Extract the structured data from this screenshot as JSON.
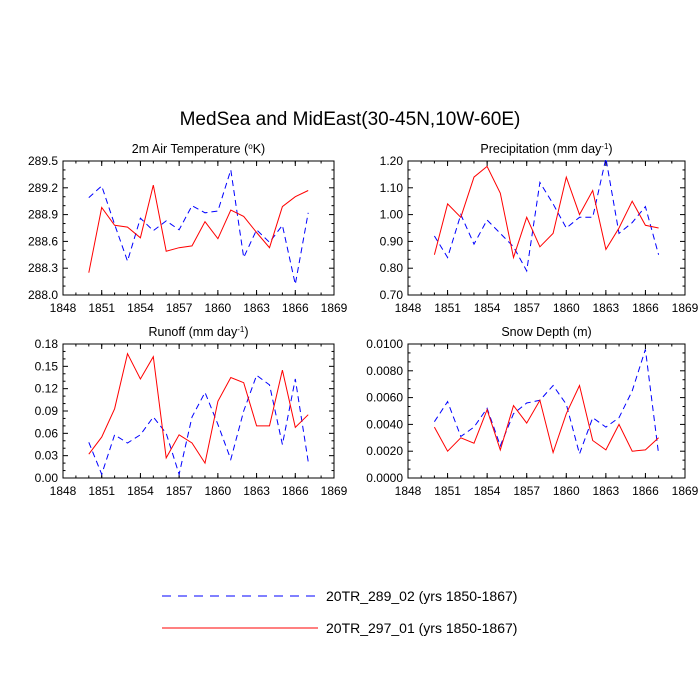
{
  "title": "MedSea and MidEast(30-45N,10W-60E)",
  "legend": [
    {
      "label": "20TR_289_02 (yrs 1850-1867)",
      "color": "#0000ff",
      "style": "dashed"
    },
    {
      "label": "20TR_297_01 (yrs 1850-1867)",
      "color": "#ff0000",
      "style": "solid"
    }
  ],
  "chart_data": [
    {
      "type": "line",
      "title_main": "2m Air Temperature (",
      "title_sup": "o",
      "title_tail": "K)",
      "x": [
        1850,
        1851,
        1852,
        1853,
        1854,
        1855,
        1856,
        1857,
        1858,
        1859,
        1860,
        1861,
        1862,
        1863,
        1864,
        1865,
        1866,
        1867
      ],
      "xlim": [
        1848,
        1869
      ],
      "xticks": [
        "1848",
        "1851",
        "1854",
        "1857",
        "1860",
        "1863",
        "1866",
        "1869"
      ],
      "ylim": [
        288.0,
        289.5
      ],
      "yticks": [
        "288.0",
        "288.3",
        "288.6",
        "288.9",
        "289.2",
        "289.5"
      ],
      "series": [
        {
          "name": "20TR_289_02",
          "color": "#0000ff",
          "style": "dashed",
          "values": [
            289.09,
            289.22,
            288.79,
            288.38,
            288.86,
            288.72,
            288.83,
            288.73,
            289.0,
            288.92,
            288.94,
            289.4,
            288.42,
            288.73,
            288.59,
            288.78,
            288.12,
            288.92
          ]
        },
        {
          "name": "20TR_297_01",
          "color": "#ff0000",
          "style": "solid",
          "values": [
            288.25,
            288.98,
            288.78,
            288.76,
            288.64,
            289.23,
            288.49,
            288.53,
            288.55,
            288.82,
            288.63,
            288.95,
            288.88,
            288.7,
            288.53,
            288.99,
            289.1,
            289.17
          ]
        }
      ]
    },
    {
      "type": "line",
      "title_main": "Precipitation (mm day",
      "title_sup": "-1",
      "title_tail": ")",
      "x": [
        1850,
        1851,
        1852,
        1853,
        1854,
        1855,
        1856,
        1857,
        1858,
        1859,
        1860,
        1861,
        1862,
        1863,
        1864,
        1865,
        1866,
        1867
      ],
      "xlim": [
        1848,
        1869
      ],
      "xticks": [
        "1848",
        "1851",
        "1854",
        "1857",
        "1860",
        "1863",
        "1866",
        "1869"
      ],
      "ylim": [
        0.7,
        1.2
      ],
      "yticks": [
        "0.70",
        "0.80",
        "0.90",
        "1.00",
        "1.10",
        "1.20"
      ],
      "series": [
        {
          "name": "20TR_289_02",
          "color": "#0000ff",
          "style": "dashed",
          "values": [
            0.92,
            0.84,
            1.0,
            0.89,
            0.98,
            0.93,
            0.88,
            0.79,
            1.12,
            1.04,
            0.95,
            0.99,
            0.99,
            1.21,
            0.93,
            0.97,
            1.03,
            0.85
          ]
        },
        {
          "name": "20TR_297_01",
          "color": "#ff0000",
          "style": "solid",
          "values": [
            0.85,
            1.04,
            0.99,
            1.14,
            1.18,
            1.08,
            0.84,
            0.99,
            0.88,
            0.93,
            1.14,
            1.0,
            1.09,
            0.87,
            0.95,
            1.05,
            0.96,
            0.95
          ]
        }
      ]
    },
    {
      "type": "line",
      "title_main": "Runoff (mm day",
      "title_sup": "-1",
      "title_tail": ")",
      "x": [
        1850,
        1851,
        1852,
        1853,
        1854,
        1855,
        1856,
        1857,
        1858,
        1859,
        1860,
        1861,
        1862,
        1863,
        1864,
        1865,
        1866,
        1867
      ],
      "xlim": [
        1848,
        1869
      ],
      "xticks": [
        "1848",
        "1851",
        "1854",
        "1857",
        "1860",
        "1863",
        "1866",
        "1869"
      ],
      "ylim": [
        0.0,
        0.18
      ],
      "yticks": [
        "0.00",
        "0.03",
        "0.06",
        "0.09",
        "0.12",
        "0.15",
        "0.18"
      ],
      "series": [
        {
          "name": "20TR_289_02",
          "color": "#0000ff",
          "style": "dashed",
          "values": [
            0.048,
            0.005,
            0.058,
            0.047,
            0.058,
            0.082,
            0.06,
            0.005,
            0.082,
            0.115,
            0.072,
            0.025,
            0.09,
            0.138,
            0.125,
            0.045,
            0.133,
            0.022
          ]
        },
        {
          "name": "20TR_297_01",
          "color": "#ff0000",
          "style": "solid",
          "values": [
            0.032,
            0.055,
            0.093,
            0.167,
            0.133,
            0.163,
            0.027,
            0.058,
            0.047,
            0.02,
            0.103,
            0.135,
            0.128,
            0.07,
            0.07,
            0.145,
            0.068,
            0.085
          ]
        }
      ]
    },
    {
      "type": "line",
      "title_main": "Snow Depth (m)",
      "title_sup": "",
      "title_tail": "",
      "x": [
        1850,
        1851,
        1852,
        1853,
        1854,
        1855,
        1856,
        1857,
        1858,
        1859,
        1860,
        1861,
        1862,
        1863,
        1864,
        1865,
        1866,
        1867
      ],
      "xlim": [
        1848,
        1869
      ],
      "xticks": [
        "1848",
        "1851",
        "1854",
        "1857",
        "1860",
        "1863",
        "1866",
        "1869"
      ],
      "ylim": [
        0.0,
        0.01
      ],
      "yticks": [
        "0.0000",
        "0.0020",
        "0.0040",
        "0.0060",
        "0.0080",
        "0.0100"
      ],
      "series": [
        {
          "name": "20TR_289_02",
          "color": "#0000ff",
          "style": "dashed",
          "values": [
            0.0042,
            0.0057,
            0.0031,
            0.0038,
            0.0052,
            0.0024,
            0.0048,
            0.0056,
            0.0058,
            0.0069,
            0.0055,
            0.0018,
            0.0045,
            0.0038,
            0.0045,
            0.0065,
            0.0096,
            0.0018
          ]
        },
        {
          "name": "20TR_297_01",
          "color": "#ff0000",
          "style": "solid",
          "values": [
            0.0038,
            0.002,
            0.003,
            0.0026,
            0.0051,
            0.0021,
            0.0054,
            0.0041,
            0.0058,
            0.0019,
            0.0048,
            0.0069,
            0.0028,
            0.0021,
            0.004,
            0.002,
            0.0021,
            0.003
          ]
        }
      ]
    }
  ]
}
